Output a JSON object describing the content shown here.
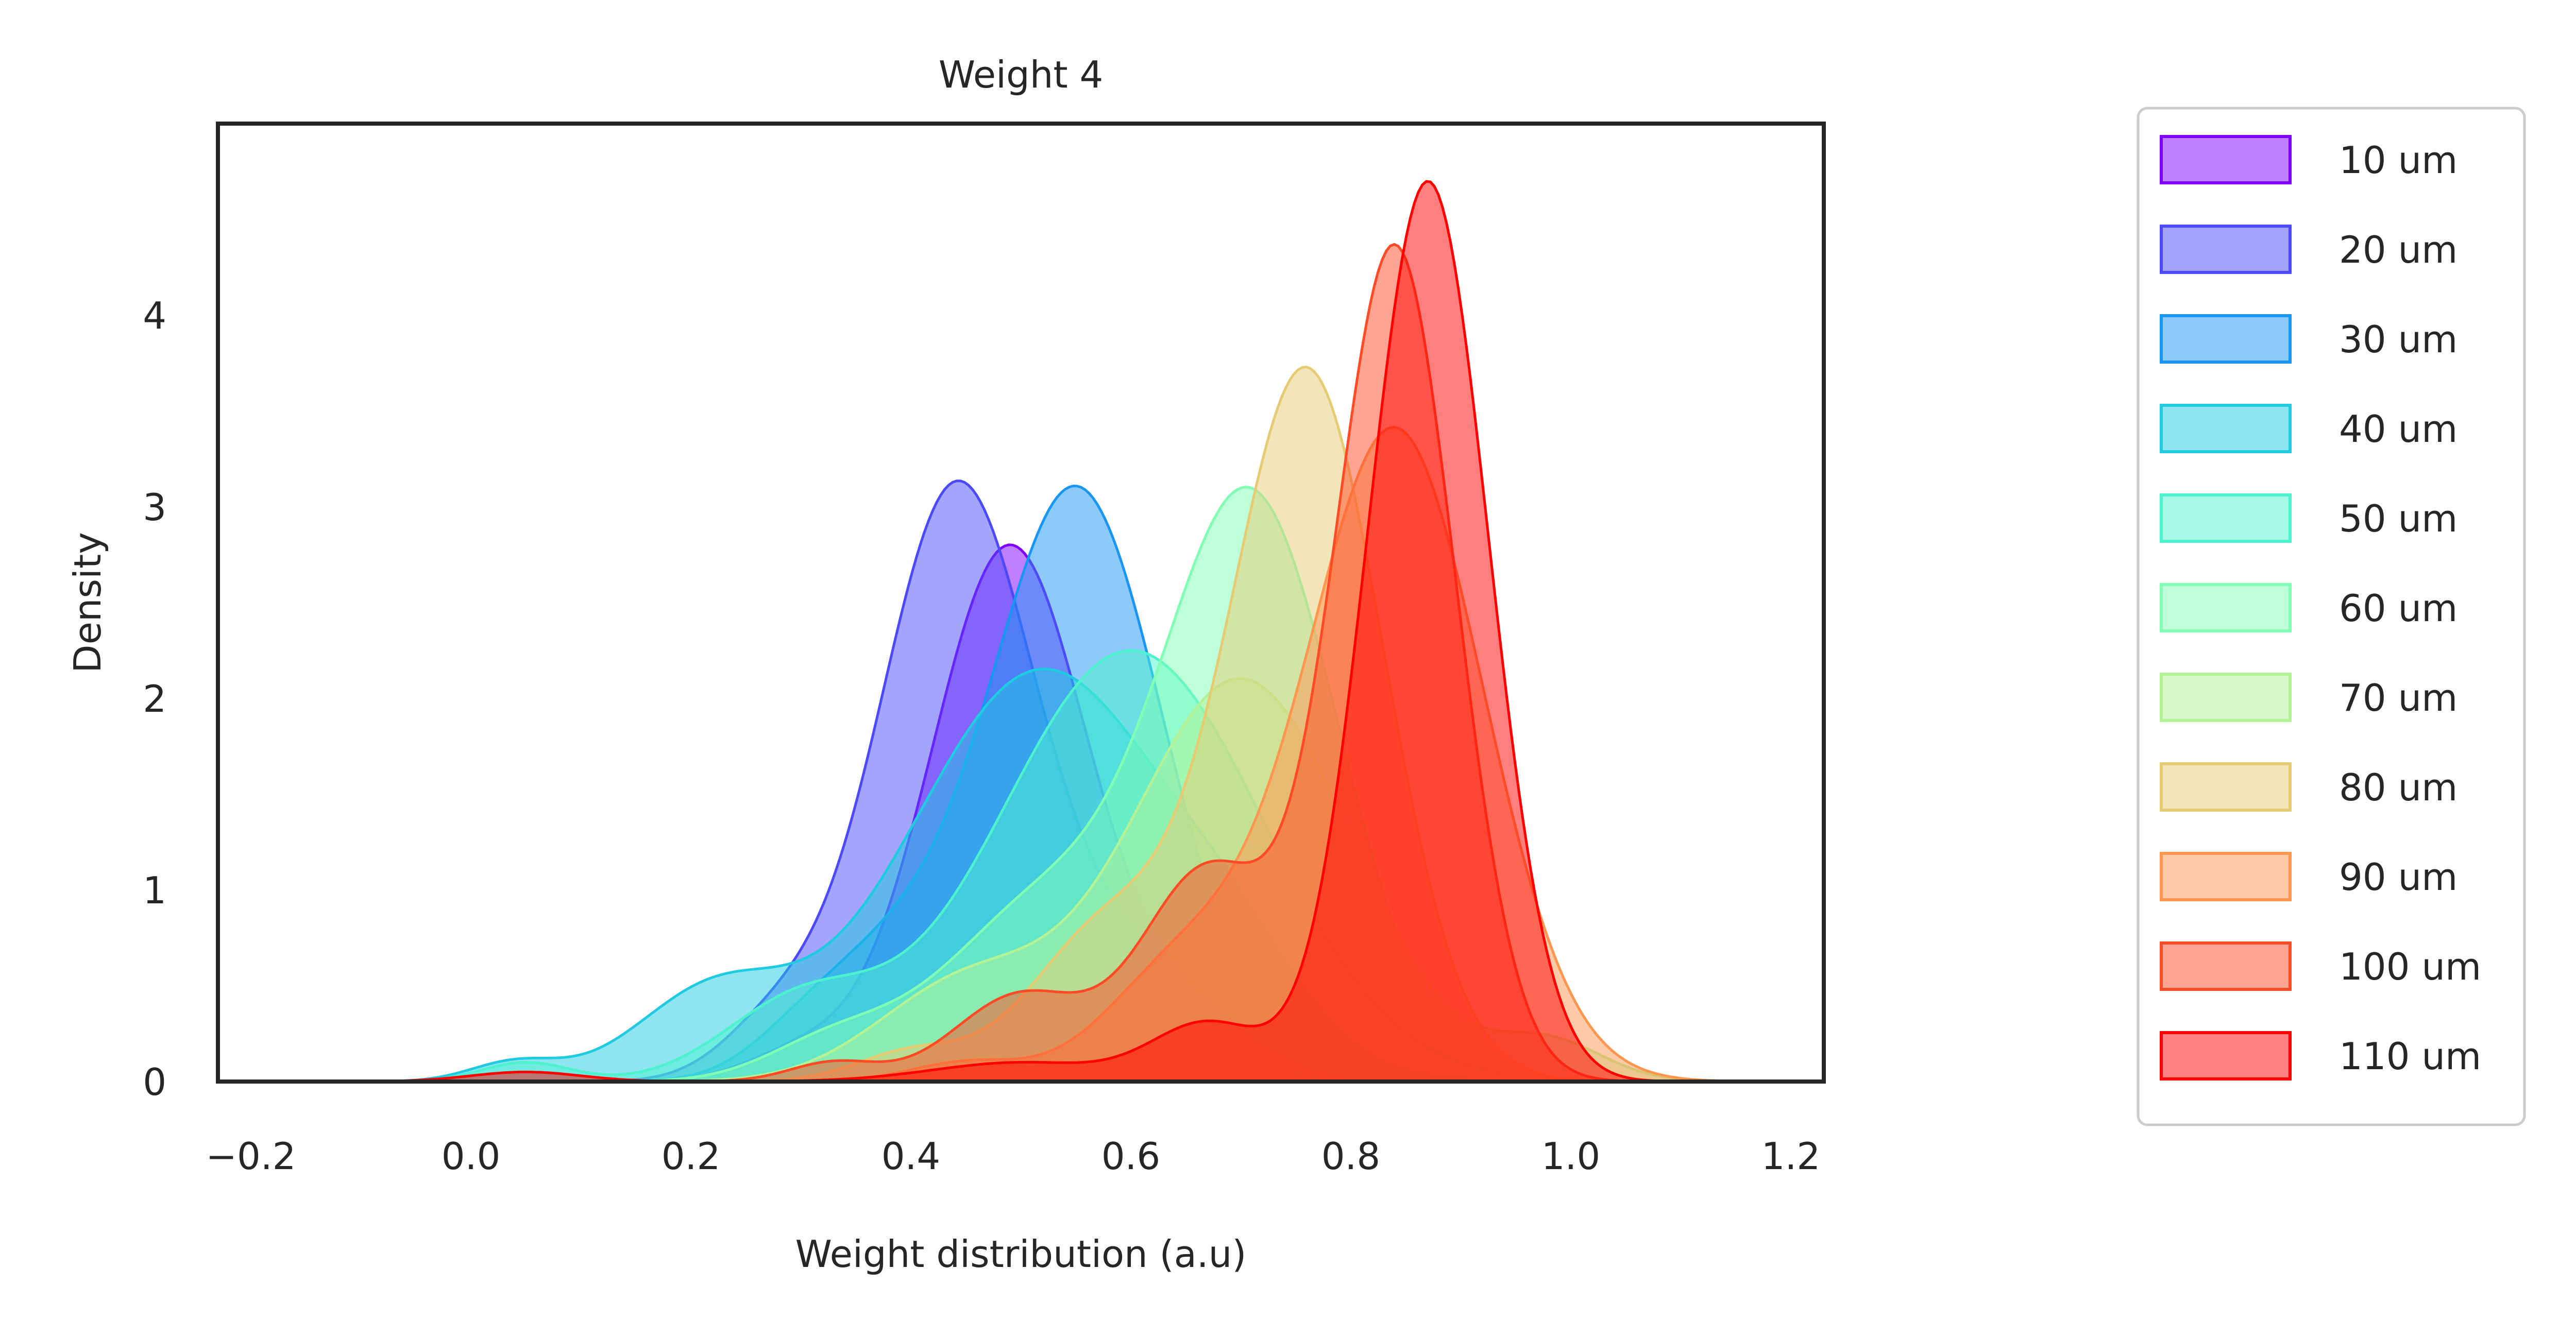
{
  "chart_data": {
    "type": "area",
    "title": "Weight 4",
    "xlabel": "Weight distribution (a.u)",
    "ylabel": "Density",
    "xlim": [
      -0.23,
      1.23
    ],
    "ylim": [
      0,
      5.0
    ],
    "xticks": [
      "−0.2",
      "0.0",
      "0.2",
      "0.4",
      "0.6",
      "0.8",
      "1.0",
      "1.2"
    ],
    "xtick_values": [
      -0.2,
      0.0,
      0.2,
      0.4,
      0.6,
      0.8,
      1.0,
      1.2
    ],
    "yticks": [
      "0",
      "1",
      "2",
      "3",
      "4"
    ],
    "ytick_values": [
      0,
      1,
      2,
      3,
      4
    ],
    "grid": false,
    "legend_position": "outside-right",
    "series": [
      {
        "name": "10 um",
        "color": "#8000ff",
        "components": [
          {
            "m": 0.49,
            "s": 0.072,
            "h": 2.8
          },
          {
            "m": 0.3,
            "s": 0.05,
            "h": 0.15
          },
          {
            "m": 0.65,
            "s": 0.05,
            "h": 0.3
          }
        ]
      },
      {
        "name": "20 um",
        "color": "#4c49f9",
        "components": [
          {
            "m": 0.44,
            "s": 0.07,
            "h": 3.05
          },
          {
            "m": 0.6,
            "s": 0.08,
            "h": 0.6
          },
          {
            "m": 0.28,
            "s": 0.05,
            "h": 0.3
          }
        ]
      },
      {
        "name": "30 um",
        "color": "#1996f3",
        "components": [
          {
            "m": 0.55,
            "s": 0.08,
            "h": 3.1
          },
          {
            "m": 0.38,
            "s": 0.06,
            "h": 0.5
          },
          {
            "m": 0.3,
            "s": 0.05,
            "h": 0.2
          }
        ]
      },
      {
        "name": "40 um",
        "color": "#1ecbe1",
        "components": [
          {
            "m": 0.52,
            "s": 0.12,
            "h": 2.15
          },
          {
            "m": 0.22,
            "s": 0.07,
            "h": 0.45
          },
          {
            "m": 0.04,
            "s": 0.04,
            "h": 0.1
          },
          {
            "m": 0.7,
            "s": 0.06,
            "h": 0.3
          }
        ]
      },
      {
        "name": "50 um",
        "color": "#4df3ce",
        "components": [
          {
            "m": 0.6,
            "s": 0.12,
            "h": 2.25
          },
          {
            "m": 0.3,
            "s": 0.07,
            "h": 0.4
          },
          {
            "m": 0.05,
            "s": 0.04,
            "h": 0.1
          }
        ]
      },
      {
        "name": "60 um",
        "color": "#80ffb4",
        "components": [
          {
            "m": 0.71,
            "s": 0.08,
            "h": 3.0
          },
          {
            "m": 0.52,
            "s": 0.09,
            "h": 0.9
          },
          {
            "m": 0.33,
            "s": 0.06,
            "h": 0.2
          }
        ]
      },
      {
        "name": "70 um",
        "color": "#b3f396",
        "components": [
          {
            "m": 0.7,
            "s": 0.1,
            "h": 2.1
          },
          {
            "m": 0.45,
            "s": 0.08,
            "h": 0.5
          },
          {
            "m": 0.98,
            "s": 0.05,
            "h": 0.2
          }
        ]
      },
      {
        "name": "80 um",
        "color": "#e6cb73",
        "components": [
          {
            "m": 0.76,
            "s": 0.07,
            "h": 3.7
          },
          {
            "m": 0.58,
            "s": 0.07,
            "h": 0.8
          },
          {
            "m": 0.4,
            "s": 0.05,
            "h": 0.15
          }
        ]
      },
      {
        "name": "90 um",
        "color": "#ff964f",
        "components": [
          {
            "m": 0.84,
            "s": 0.08,
            "h": 3.4
          },
          {
            "m": 0.65,
            "s": 0.07,
            "h": 0.6
          },
          {
            "m": 0.45,
            "s": 0.05,
            "h": 0.1
          }
        ]
      },
      {
        "name": "100 um",
        "color": "#ff4a26",
        "components": [
          {
            "m": 0.84,
            "s": 0.055,
            "h": 4.35
          },
          {
            "m": 0.67,
            "s": 0.06,
            "h": 1.1
          },
          {
            "m": 0.5,
            "s": 0.06,
            "h": 0.45
          },
          {
            "m": 0.33,
            "s": 0.04,
            "h": 0.1
          }
        ]
      },
      {
        "name": "110 um",
        "color": "#ff0000",
        "components": [
          {
            "m": 0.87,
            "s": 0.055,
            "h": 4.7
          },
          {
            "m": 0.67,
            "s": 0.05,
            "h": 0.3
          },
          {
            "m": 0.5,
            "s": 0.08,
            "h": 0.1
          },
          {
            "m": 0.05,
            "s": 0.05,
            "h": 0.05
          }
        ]
      }
    ]
  }
}
